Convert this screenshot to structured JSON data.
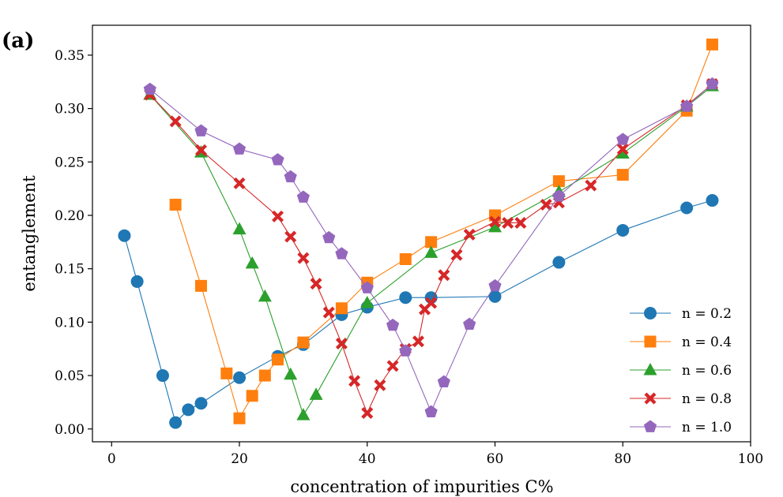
{
  "chart_data": {
    "type": "line",
    "panel_label": "(a)",
    "title": "",
    "xlabel": "concentration of impurities C%",
    "ylabel": "entanglement",
    "xlim": [
      -3,
      100
    ],
    "ylim": [
      -0.012,
      0.378
    ],
    "xticks": [
      0,
      20,
      40,
      60,
      80,
      100
    ],
    "xtick_labels": [
      "0",
      "20",
      "40",
      "60",
      "80",
      "100"
    ],
    "yticks": [
      0.0,
      0.05,
      0.1,
      0.15,
      0.2,
      0.25,
      0.3,
      0.35
    ],
    "ytick_labels": [
      "0.00",
      "0.05",
      "0.10",
      "0.15",
      "0.20",
      "0.25",
      "0.30",
      "0.35"
    ],
    "grid": false,
    "legend_position": "lower-right",
    "series": [
      {
        "name": "n = 0.2",
        "color": "#1f77b4",
        "marker": "circle",
        "x": [
          2,
          4,
          8,
          10,
          12,
          14,
          20,
          26,
          30,
          36,
          40,
          46,
          50,
          60,
          70,
          80,
          90,
          94
        ],
        "y": [
          0.181,
          0.138,
          0.05,
          0.006,
          0.018,
          0.024,
          0.048,
          0.068,
          0.079,
          0.107,
          0.114,
          0.123,
          0.123,
          0.124,
          0.156,
          0.186,
          0.207,
          0.214
        ]
      },
      {
        "name": "n = 0.4",
        "color": "#ff7f0e",
        "marker": "square",
        "x": [
          10,
          14,
          18,
          20,
          22,
          24,
          26,
          30,
          36,
          40,
          46,
          50,
          60,
          70,
          80,
          90,
          94
        ],
        "y": [
          0.21,
          0.134,
          0.052,
          0.01,
          0.031,
          0.05,
          0.065,
          0.081,
          0.113,
          0.137,
          0.159,
          0.175,
          0.2,
          0.232,
          0.238,
          0.298,
          0.36
        ]
      },
      {
        "name": "n = 0.6",
        "color": "#2ca02c",
        "marker": "triangle",
        "x": [
          6,
          14,
          20,
          22,
          24,
          28,
          30,
          32,
          40,
          50,
          60,
          70,
          80,
          90,
          94
        ],
        "y": [
          0.313,
          0.259,
          0.187,
          0.155,
          0.124,
          0.051,
          0.013,
          0.032,
          0.118,
          0.165,
          0.189,
          0.222,
          0.258,
          0.302,
          0.321
        ]
      },
      {
        "name": "n = 0.8",
        "color": "#d62728",
        "marker": "cross",
        "x": [
          6,
          10,
          14,
          20,
          26,
          28,
          30,
          32,
          34,
          36,
          38,
          40,
          42,
          44,
          46,
          48,
          49,
          50,
          52,
          54,
          56,
          60,
          62,
          64,
          68,
          70,
          75,
          80,
          90,
          94
        ],
        "y": [
          0.313,
          0.288,
          0.261,
          0.23,
          0.199,
          0.18,
          0.16,
          0.136,
          0.109,
          0.08,
          0.045,
          0.015,
          0.041,
          0.059,
          0.075,
          0.082,
          0.112,
          0.118,
          0.144,
          0.163,
          0.182,
          0.194,
          0.193,
          0.193,
          0.21,
          0.212,
          0.228,
          0.262,
          0.303,
          0.323
        ]
      },
      {
        "name": "n = 1.0",
        "color": "#9467bd",
        "marker": "pentagon",
        "x": [
          6,
          14,
          20,
          26,
          28,
          30,
          34,
          36,
          40,
          44,
          46,
          50,
          52,
          56,
          60,
          70,
          80,
          90,
          94
        ],
        "y": [
          0.318,
          0.279,
          0.262,
          0.252,
          0.236,
          0.217,
          0.179,
          0.164,
          0.132,
          0.097,
          0.073,
          0.016,
          0.044,
          0.098,
          0.134,
          0.218,
          0.271,
          0.302,
          0.323
        ]
      }
    ]
  }
}
